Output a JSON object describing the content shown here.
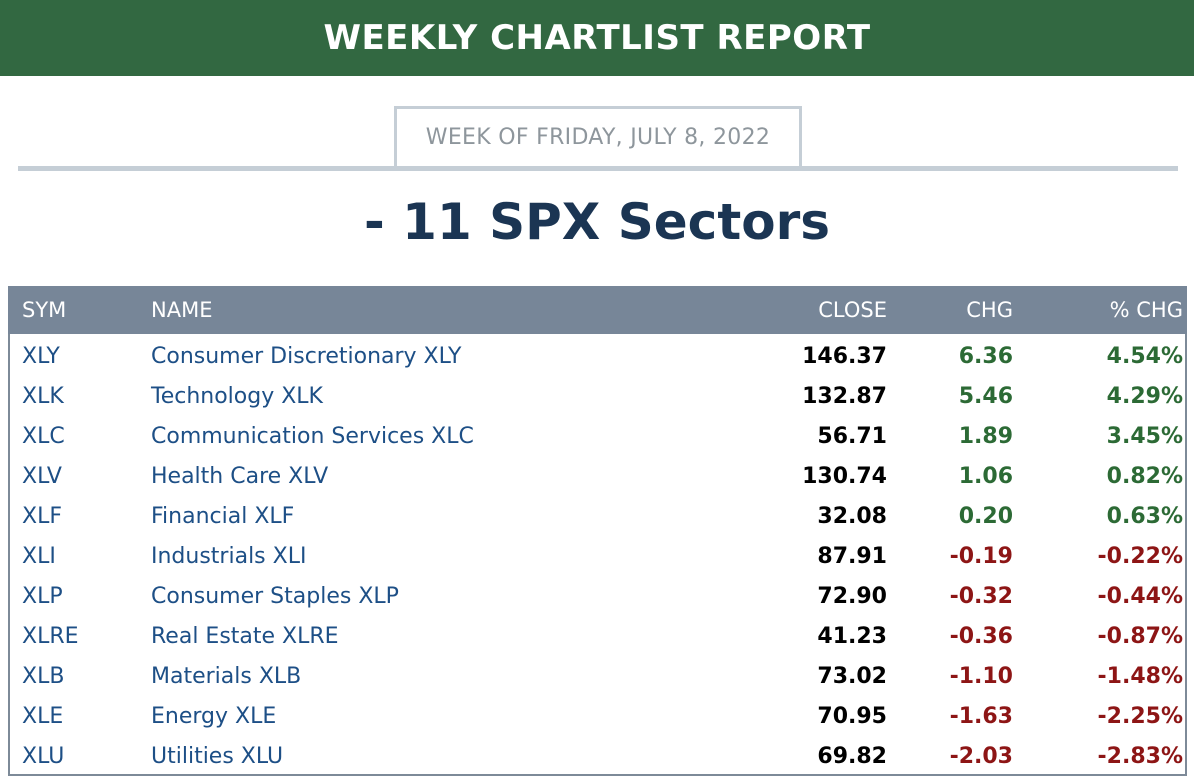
{
  "banner": {
    "title": "WEEKLY CHARTLIST REPORT"
  },
  "week": {
    "label": "WEEK OF FRIDAY, JULY 8, 2022"
  },
  "page": {
    "title": "- 11 SPX Sectors"
  },
  "colors": {
    "banner_green": "#326841",
    "link_blue": "#1d4f86",
    "up_green": "#2c6a35",
    "down_red": "#8d1515",
    "header_gray": "#778698"
  },
  "table": {
    "headers": {
      "sym": "SYM",
      "name": "NAME",
      "close": "CLOSE",
      "chg": "CHG",
      "pct": "% CHG"
    },
    "rows": [
      {
        "sym": "XLY",
        "name": "Consumer Discretionary XLY",
        "close": "146.37",
        "chg": "6.36",
        "pct": "4.54%",
        "dir": "up"
      },
      {
        "sym": "XLK",
        "name": "Technology XLK",
        "close": "132.87",
        "chg": "5.46",
        "pct": "4.29%",
        "dir": "up"
      },
      {
        "sym": "XLC",
        "name": "Communication Services XLC",
        "close": "56.71",
        "chg": "1.89",
        "pct": "3.45%",
        "dir": "up"
      },
      {
        "sym": "XLV",
        "name": "Health Care XLV",
        "close": "130.74",
        "chg": "1.06",
        "pct": "0.82%",
        "dir": "up"
      },
      {
        "sym": "XLF",
        "name": "Financial XLF",
        "close": "32.08",
        "chg": "0.20",
        "pct": "0.63%",
        "dir": "up"
      },
      {
        "sym": "XLI",
        "name": "Industrials XLI",
        "close": "87.91",
        "chg": "-0.19",
        "pct": "-0.22%",
        "dir": "down"
      },
      {
        "sym": "XLP",
        "name": "Consumer Staples XLP",
        "close": "72.90",
        "chg": "-0.32",
        "pct": "-0.44%",
        "dir": "down"
      },
      {
        "sym": "XLRE",
        "name": "Real Estate XLRE",
        "close": "41.23",
        "chg": "-0.36",
        "pct": "-0.87%",
        "dir": "down"
      },
      {
        "sym": "XLB",
        "name": "Materials XLB",
        "close": "73.02",
        "chg": "-1.10",
        "pct": "-1.48%",
        "dir": "down"
      },
      {
        "sym": "XLE",
        "name": "Energy XLE",
        "close": "70.95",
        "chg": "-1.63",
        "pct": "-2.25%",
        "dir": "down"
      },
      {
        "sym": "XLU",
        "name": "Utilities XLU",
        "close": "69.82",
        "chg": "-2.03",
        "pct": "-2.83%",
        "dir": "down"
      }
    ]
  }
}
